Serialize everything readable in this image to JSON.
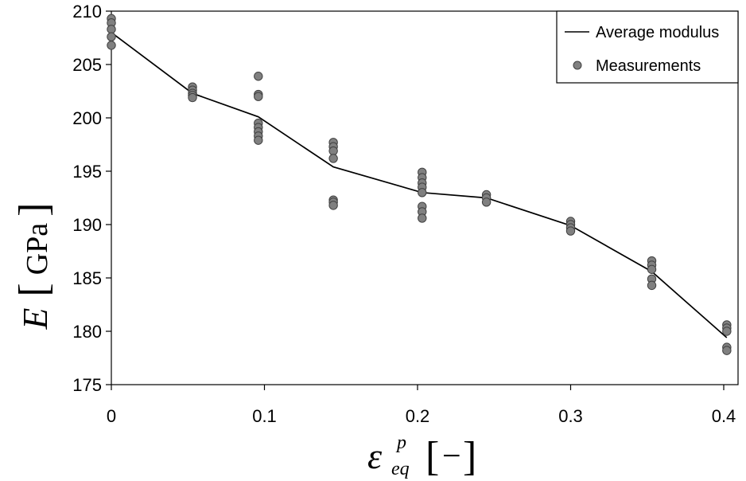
{
  "chart_data": {
    "type": "line+scatter",
    "title": "",
    "xlabel": {
      "symbol": "ε",
      "superscript": "p",
      "subscript": "eq",
      "unit": "−"
    },
    "ylabel": {
      "symbol": "E",
      "unit": "GPa"
    },
    "xlim": [
      0,
      0.4
    ],
    "ylim": [
      175,
      210
    ],
    "xticks": [
      0,
      0.1,
      0.2,
      0.3,
      0.4
    ],
    "xtick_labels": [
      "0",
      "0.1",
      "0.2",
      "0.3",
      "0.4"
    ],
    "yticks": [
      175,
      180,
      185,
      190,
      195,
      200,
      205,
      210
    ],
    "ytick_labels": [
      "175",
      "180",
      "185",
      "190",
      "195",
      "200",
      "205",
      "210"
    ],
    "legend": {
      "position": "top-right",
      "entries": [
        {
          "label": "Average modulus",
          "kind": "line"
        },
        {
          "label": "Measurements",
          "kind": "marker"
        }
      ]
    },
    "series": [
      {
        "name": "Average modulus",
        "kind": "line",
        "color": "#000000",
        "x": [
          0,
          0.053,
          0.096,
          0.145,
          0.203,
          0.245,
          0.3,
          0.353,
          0.402
        ],
        "y": [
          208.0,
          202.3,
          200.1,
          195.4,
          193.0,
          192.5,
          189.9,
          185.6,
          179.4
        ]
      },
      {
        "name": "Measurements",
        "kind": "scatter",
        "color": "#808080",
        "points": [
          [
            0,
            209.3
          ],
          [
            0,
            208.9
          ],
          [
            0,
            208.3
          ],
          [
            0,
            207.6
          ],
          [
            0,
            206.8
          ],
          [
            0.053,
            202.9
          ],
          [
            0.053,
            202.6
          ],
          [
            0.053,
            202.3
          ],
          [
            0.053,
            202.1
          ],
          [
            0.053,
            201.9
          ],
          [
            0.096,
            203.9
          ],
          [
            0.096,
            202.2
          ],
          [
            0.096,
            202.0
          ],
          [
            0.096,
            199.5
          ],
          [
            0.096,
            199.1
          ],
          [
            0.096,
            198.7
          ],
          [
            0.096,
            198.3
          ],
          [
            0.096,
            197.9
          ],
          [
            0.145,
            197.7
          ],
          [
            0.145,
            197.3
          ],
          [
            0.145,
            196.9
          ],
          [
            0.145,
            196.2
          ],
          [
            0.145,
            192.3
          ],
          [
            0.145,
            192.1
          ],
          [
            0.145,
            191.8
          ],
          [
            0.203,
            194.9
          ],
          [
            0.203,
            194.4
          ],
          [
            0.203,
            193.9
          ],
          [
            0.203,
            193.5
          ],
          [
            0.203,
            193.0
          ],
          [
            0.203,
            191.7
          ],
          [
            0.203,
            191.2
          ],
          [
            0.203,
            190.6
          ],
          [
            0.245,
            192.8
          ],
          [
            0.245,
            192.5
          ],
          [
            0.245,
            192.1
          ],
          [
            0.3,
            190.3
          ],
          [
            0.3,
            190.0
          ],
          [
            0.3,
            189.7
          ],
          [
            0.3,
            189.4
          ],
          [
            0.353,
            186.6
          ],
          [
            0.353,
            186.2
          ],
          [
            0.353,
            185.8
          ],
          [
            0.353,
            184.9
          ],
          [
            0.353,
            184.3
          ],
          [
            0.402,
            180.6
          ],
          [
            0.402,
            180.3
          ],
          [
            0.402,
            180.0
          ],
          [
            0.402,
            178.5
          ],
          [
            0.402,
            178.2
          ]
        ]
      }
    ]
  }
}
